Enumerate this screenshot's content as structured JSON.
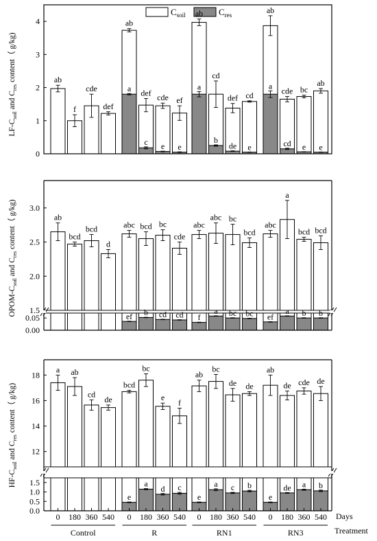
{
  "chart_data": {
    "type": "bar",
    "days": [
      "0",
      "180",
      "360",
      "540"
    ],
    "treatments": [
      "Control",
      "R",
      "RN1",
      "RN3"
    ],
    "x_axis_name_days": "Days",
    "x_axis_name_treatment": "Treatment",
    "legend": {
      "placement": "top-center",
      "items": [
        {
          "key": "csoil",
          "base": "C",
          "sub": "soil",
          "color": "#ffffff"
        },
        {
          "key": "cres",
          "base": "C",
          "sub": "res",
          "color": "#888888"
        }
      ]
    },
    "panels": [
      {
        "id": "lf",
        "ylabel": {
          "pre": "LF-C",
          "sub1": "soil",
          "mid": " and C",
          "sub2": "res",
          "post": " content（ g/kg)"
        },
        "yticks": [
          "0",
          "1",
          "2",
          "3",
          "4"
        ],
        "broken": false,
        "ylim": [
          0,
          4.5
        ],
        "groups": [
          {
            "treatment": "Control",
            "bars": [
              {
                "day": "0",
                "csoil": 1.97,
                "csoil_err": 0.1,
                "csoil_label": "ab",
                "cres": null
              },
              {
                "day": "180",
                "csoil": 1.0,
                "csoil_err": 0.18,
                "csoil_label": "f",
                "cres": null
              },
              {
                "day": "360",
                "csoil": 1.45,
                "csoil_err": 0.35,
                "csoil_label": "cde",
                "cres": null
              },
              {
                "day": "540",
                "csoil": 1.22,
                "csoil_err": 0.05,
                "csoil_label": "def",
                "cres": null
              }
            ]
          },
          {
            "treatment": "R",
            "bars": [
              {
                "day": "0",
                "csoil": 3.73,
                "csoil_err": 0.05,
                "csoil_label": "ab",
                "cres": 1.8,
                "cres_err": 0.02,
                "cres_label": "a"
              },
              {
                "day": "180",
                "csoil": 1.47,
                "csoil_err": 0.2,
                "csoil_label": "def",
                "cres": 0.18,
                "cres_err": 0.03,
                "cres_label": "c"
              },
              {
                "day": "360",
                "csoil": 1.45,
                "csoil_err": 0.08,
                "csoil_label": "cde",
                "cres": 0.07,
                "cres_err": 0.01,
                "cres_label": "e"
              },
              {
                "day": "540",
                "csoil": 1.23,
                "csoil_err": 0.22,
                "csoil_label": "ef",
                "cres": 0.05,
                "cres_err": 0.01,
                "cres_label": "e"
              }
            ]
          },
          {
            "treatment": "RN1",
            "bars": [
              {
                "day": "0",
                "csoil": 3.97,
                "csoil_err": 0.1,
                "csoil_label": "ab",
                "cres": 1.8,
                "cres_err": 0.08,
                "cres_label": "a"
              },
              {
                "day": "180",
                "csoil": 1.8,
                "csoil_err": 0.4,
                "csoil_label": "cd",
                "cres": 0.25,
                "cres_err": 0.02,
                "cres_label": "b"
              },
              {
                "day": "360",
                "csoil": 1.38,
                "csoil_err": 0.14,
                "csoil_label": "def",
                "cres": 0.08,
                "cres_err": 0.01,
                "cres_label": "de"
              },
              {
                "day": "540",
                "csoil": 1.58,
                "csoil_err": 0.02,
                "csoil_label": "cd",
                "cres": 0.05,
                "cres_err": 0.005,
                "cres_label": "e"
              }
            ]
          },
          {
            "treatment": "RN3",
            "bars": [
              {
                "day": "0",
                "csoil": 3.87,
                "csoil_err": 0.3,
                "csoil_label": "ab",
                "cres": 1.8,
                "cres_err": 0.1,
                "cres_label": "a"
              },
              {
                "day": "180",
                "csoil": 1.65,
                "csoil_err": 0.08,
                "csoil_label": "cde",
                "cres": 0.15,
                "cres_err": 0.02,
                "cres_label": "cd"
              },
              {
                "day": "360",
                "csoil": 1.73,
                "csoil_err": 0.04,
                "csoil_label": "bc",
                "cres": 0.06,
                "cres_err": 0.005,
                "cres_label": "e"
              },
              {
                "day": "540",
                "csoil": 1.9,
                "csoil_err": 0.07,
                "csoil_label": "ab",
                "cres": 0.05,
                "cres_err": 0.005,
                "cres_label": "e"
              }
            ]
          }
        ]
      },
      {
        "id": "opom",
        "ylabel": {
          "pre": "OPOM-C",
          "sub1": "soil",
          "mid": " and C",
          "sub2": "res",
          "post": " content（ g/kg)"
        },
        "yticks_upper": [
          "1.5",
          "2.0",
          "2.5",
          "3.0"
        ],
        "yticks_lower": [
          "0.00",
          "0.05"
        ],
        "broken": true,
        "upper_range": [
          1.5,
          3.4
        ],
        "lower_range": [
          0,
          0.07
        ],
        "groups": [
          {
            "treatment": "Control",
            "bars": [
              {
                "day": "0",
                "csoil": 2.65,
                "csoil_err": 0.13,
                "csoil_label": "ab",
                "cres": null
              },
              {
                "day": "180",
                "csoil": 2.47,
                "csoil_err": 0.03,
                "csoil_label": "bcd",
                "cres": null
              },
              {
                "day": "360",
                "csoil": 2.52,
                "csoil_err": 0.09,
                "csoil_label": "bcd",
                "cres": null
              },
              {
                "day": "540",
                "csoil": 2.33,
                "csoil_err": 0.06,
                "csoil_label": "d",
                "cres": null
              }
            ]
          },
          {
            "treatment": "R",
            "bars": [
              {
                "day": "0",
                "csoil": 2.62,
                "csoil_err": 0.05,
                "csoil_label": "abc",
                "cres": 0.036,
                "cres_err": 0.001,
                "cres_label": "ef"
              },
              {
                "day": "180",
                "csoil": 2.55,
                "csoil_err": 0.1,
                "csoil_label": "bcd",
                "cres": 0.052,
                "cres_err": 0.001,
                "cres_label": "b"
              },
              {
                "day": "360",
                "csoil": 2.6,
                "csoil_err": 0.08,
                "csoil_label": "bc",
                "cres": 0.044,
                "cres_err": 0.001,
                "cres_label": "cd"
              },
              {
                "day": "540",
                "csoil": 2.41,
                "csoil_err": 0.09,
                "csoil_label": "cde",
                "cres": 0.042,
                "cres_err": 0.001,
                "cres_label": "cd"
              }
            ]
          },
          {
            "treatment": "RN1",
            "bars": [
              {
                "day": "0",
                "csoil": 2.61,
                "csoil_err": 0.06,
                "csoil_label": "abc",
                "cres": 0.032,
                "cres_err": 0.001,
                "cres_label": "f"
              },
              {
                "day": "180",
                "csoil": 2.63,
                "csoil_err": 0.15,
                "csoil_label": "abc",
                "cres": 0.058,
                "cres_err": 0.001,
                "cres_label": "a"
              },
              {
                "day": "360",
                "csoil": 2.61,
                "csoil_err": 0.15,
                "csoil_label": "bc",
                "cres": 0.05,
                "cres_err": 0.001,
                "cres_label": "bc"
              },
              {
                "day": "540",
                "csoil": 2.49,
                "csoil_err": 0.07,
                "csoil_label": "bcd",
                "cres": 0.048,
                "cres_err": 0.001,
                "cres_label": "bc"
              }
            ]
          },
          {
            "treatment": "RN3",
            "bars": [
              {
                "day": "0",
                "csoil": 2.62,
                "csoil_err": 0.05,
                "csoil_label": "abc",
                "cres": 0.034,
                "cres_err": 0.001,
                "cres_label": "ef"
              },
              {
                "day": "180",
                "csoil": 2.83,
                "csoil_err": 0.28,
                "csoil_label": "a",
                "cres": 0.058,
                "cres_err": 0.001,
                "cres_label": "a"
              },
              {
                "day": "360",
                "csoil": 2.54,
                "csoil_err": 0.03,
                "csoil_label": "bcd",
                "cres": 0.05,
                "cres_err": 0.001,
                "cres_label": "b"
              },
              {
                "day": "540",
                "csoil": 2.49,
                "csoil_err": 0.1,
                "csoil_label": "bcd",
                "cres": 0.05,
                "cres_err": 0.001,
                "cres_label": "b"
              }
            ]
          }
        ]
      },
      {
        "id": "hf",
        "ylabel": {
          "pre": "HF-C",
          "sub1": "soil",
          "mid": " and C",
          "sub2": "res",
          "post": " content（ g/kg)"
        },
        "yticks_upper": [
          "12",
          "14",
          "16",
          "18"
        ],
        "yticks_lower": [
          "0.0",
          "0.5",
          "1.0",
          "1.5"
        ],
        "broken": true,
        "upper_range": [
          10.8,
          19.2
        ],
        "lower_range": [
          0,
          1.75
        ],
        "groups": [
          {
            "treatment": "Control",
            "bars": [
              {
                "day": "0",
                "csoil": 17.4,
                "csoil_err": 0.6,
                "csoil_label": "a",
                "cres": null
              },
              {
                "day": "180",
                "csoil": 17.1,
                "csoil_err": 0.7,
                "csoil_label": "ab",
                "cres": null
              },
              {
                "day": "360",
                "csoil": 15.65,
                "csoil_err": 0.4,
                "csoil_label": "cd",
                "cres": null
              },
              {
                "day": "540",
                "csoil": 15.45,
                "csoil_err": 0.2,
                "csoil_label": "de",
                "cres": null
              }
            ]
          },
          {
            "treatment": "R",
            "bars": [
              {
                "day": "0",
                "csoil": 16.7,
                "csoil_err": 0.1,
                "csoil_label": "bcd",
                "cres": 0.45,
                "cres_err": 0.02,
                "cres_label": "e"
              },
              {
                "day": "180",
                "csoil": 17.6,
                "csoil_err": 0.5,
                "csoil_label": "bc",
                "cres": 1.15,
                "cres_err": 0.03,
                "cres_label": "a"
              },
              {
                "day": "360",
                "csoil": 15.55,
                "csoil_err": 0.25,
                "csoil_label": "e",
                "cres": 0.88,
                "cres_err": 0.04,
                "cres_label": "d"
              },
              {
                "day": "540",
                "csoil": 14.8,
                "csoil_err": 0.6,
                "csoil_label": "f",
                "cres": 0.93,
                "cres_err": 0.05,
                "cres_label": "c"
              }
            ]
          },
          {
            "treatment": "RN1",
            "bars": [
              {
                "day": "0",
                "csoil": 17.15,
                "csoil_err": 0.45,
                "csoil_label": "ab",
                "cres": 0.45,
                "cres_err": 0.02,
                "cres_label": "e"
              },
              {
                "day": "180",
                "csoil": 17.5,
                "csoil_err": 0.55,
                "csoil_label": "bc",
                "cres": 1.12,
                "cres_err": 0.05,
                "cres_label": "a"
              },
              {
                "day": "360",
                "csoil": 16.45,
                "csoil_err": 0.5,
                "csoil_label": "de",
                "cres": 0.95,
                "cres_err": 0.03,
                "cres_label": "c"
              },
              {
                "day": "540",
                "csoil": 16.55,
                "csoil_err": 0.15,
                "csoil_label": "de",
                "cres": 1.05,
                "cres_err": 0.04,
                "cres_label": "b"
              }
            ]
          },
          {
            "treatment": "RN3",
            "bars": [
              {
                "day": "0",
                "csoil": 17.2,
                "csoil_err": 0.8,
                "csoil_label": "ab",
                "cres": 0.45,
                "cres_err": 0.02,
                "cres_label": "e"
              },
              {
                "day": "180",
                "csoil": 16.4,
                "csoil_err": 0.35,
                "csoil_label": "de",
                "cres": 0.95,
                "cres_err": 0.02,
                "cres_label": "de"
              },
              {
                "day": "360",
                "csoil": 16.75,
                "csoil_err": 0.25,
                "csoil_label": "cde",
                "cres": 1.12,
                "cres_err": 0.03,
                "cres_label": "a"
              },
              {
                "day": "540",
                "csoil": 16.55,
                "csoil_err": 0.55,
                "csoil_label": "de",
                "cres": 1.06,
                "cres_err": 0.04,
                "cres_label": "b"
              }
            ]
          }
        ]
      }
    ]
  }
}
